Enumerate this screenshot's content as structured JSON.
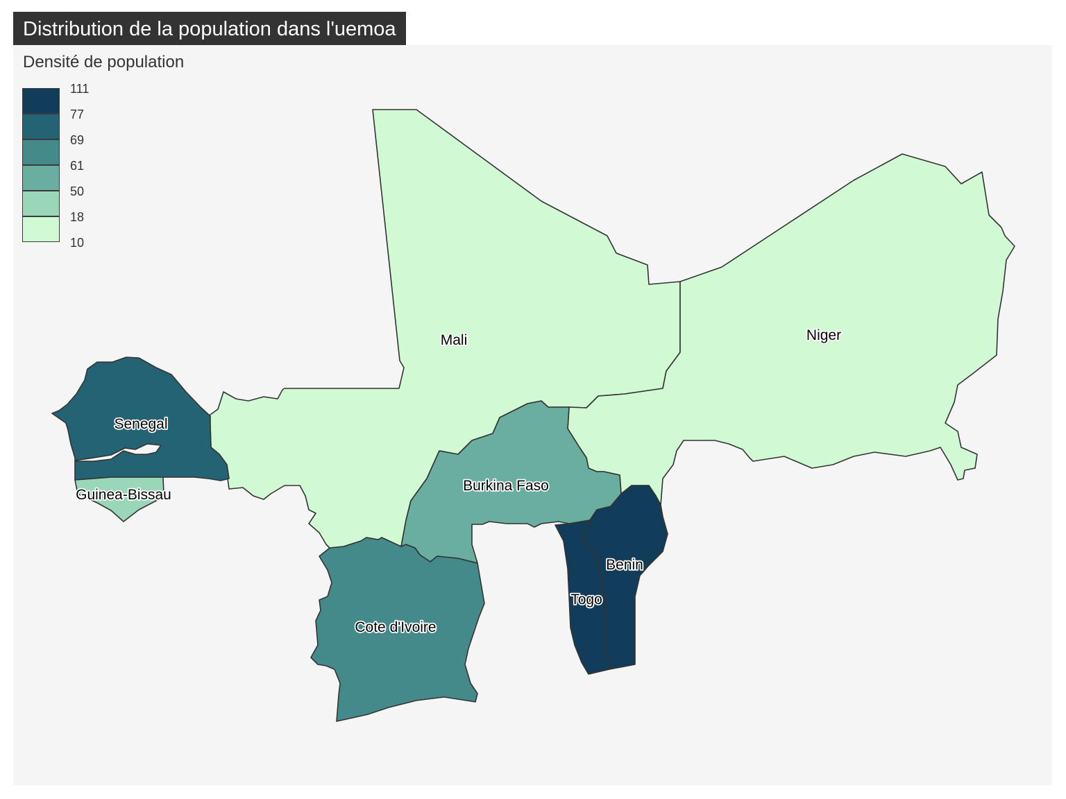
{
  "title": "Distribution de la population dans l'uemoa",
  "legend": {
    "title": "Densité de population",
    "breaks": [
      "111",
      "77",
      "69",
      "61",
      "50",
      "18",
      "10"
    ],
    "colors": [
      "#123d5a",
      "#236374",
      "#458a8a",
      "#6aaea0",
      "#9ad6b8",
      "#d0f9d4"
    ]
  },
  "countries": [
    {
      "name": "Mali",
      "color": "#d0f9d4"
    },
    {
      "name": "Niger",
      "color": "#d0f9d4"
    },
    {
      "name": "Senegal",
      "color": "#236374"
    },
    {
      "name": "Guinea-Bissau",
      "color": "#9ad6b8"
    },
    {
      "name": "Burkina Faso",
      "color": "#6aaea0"
    },
    {
      "name": "Cote d'Ivoire",
      "color": "#458a8a"
    },
    {
      "name": "Togo",
      "color": "#123d5a"
    },
    {
      "name": "Benin",
      "color": "#123d5a"
    }
  ]
}
